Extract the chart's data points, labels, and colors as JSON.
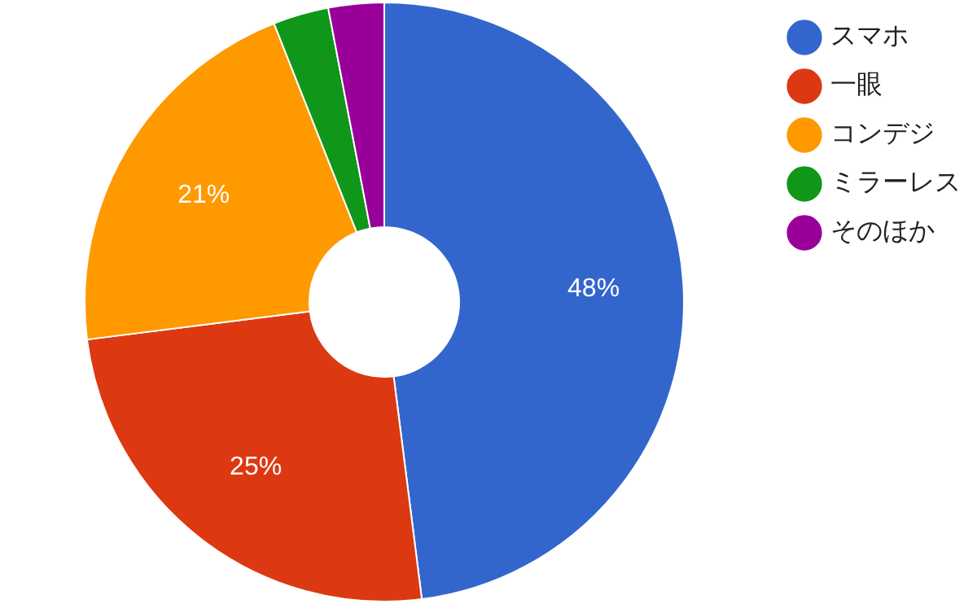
{
  "chart_data": {
    "type": "donut",
    "categories": [
      "スマホ",
      "一眼",
      "コンデジ",
      "ミラーレス",
      "そのほか"
    ],
    "values": [
      48,
      25,
      21,
      3,
      3
    ],
    "colors": [
      "#3366cc",
      "#dc3912",
      "#ff9900",
      "#109618",
      "#990099"
    ],
    "value_labels": [
      "48%",
      "25%",
      "21%",
      null,
      null
    ],
    "legend": "top right"
  }
}
